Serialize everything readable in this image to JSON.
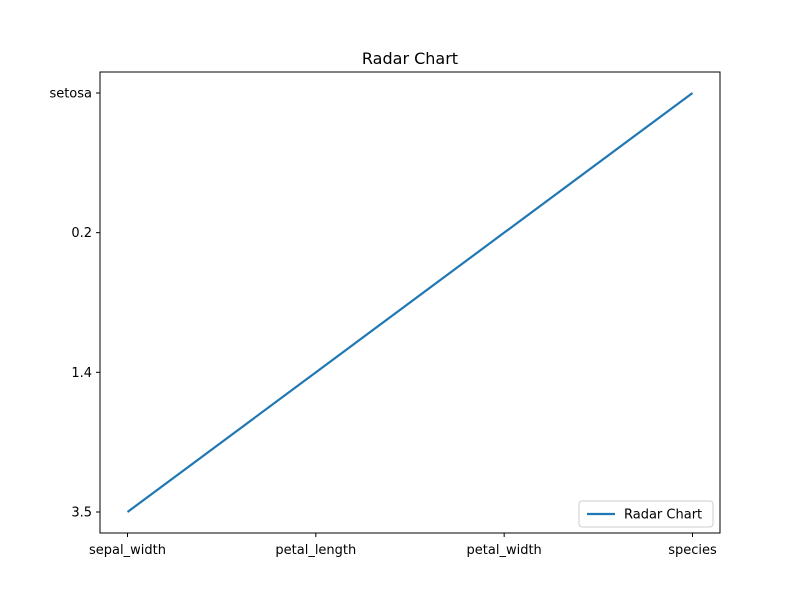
{
  "chart_data": {
    "type": "line",
    "title": "Radar Chart",
    "xlabel": "",
    "ylabel": "",
    "categories": [
      "sepal_width",
      "petal_length",
      "petal_width",
      "species"
    ],
    "y_categories": [
      "3.5",
      "1.4",
      "0.2",
      "setosa"
    ],
    "series": [
      {
        "name": "Radar Chart",
        "color": "#1f77b4",
        "values": [
          "3.5",
          "1.4",
          "0.2",
          "setosa"
        ]
      }
    ],
    "legend": {
      "position": "lower-right",
      "entries": [
        "Radar Chart"
      ]
    },
    "grid": false
  }
}
